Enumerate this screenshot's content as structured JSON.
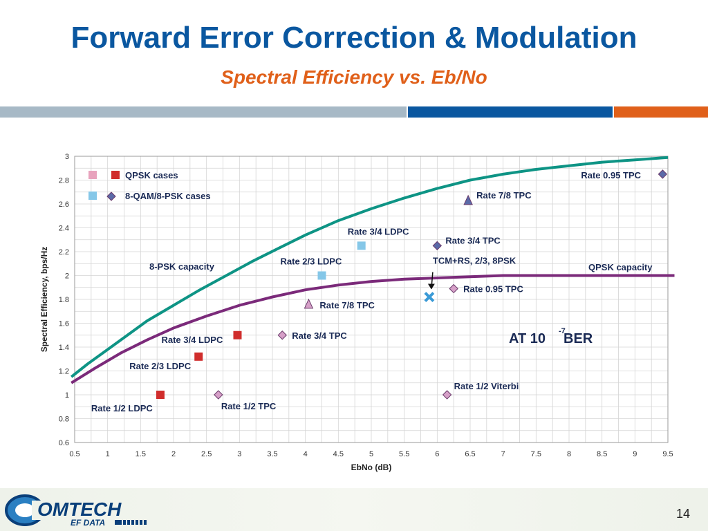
{
  "slide": {
    "title": "Forward Error Correction & Modulation",
    "subtitle": "Spectral Efficiency vs. Eb/No",
    "page_number": "14",
    "logo_text_main": "OMTECH",
    "logo_text_sub": "EF DATA"
  },
  "colors": {
    "title": "#0a57a0",
    "subtitle": "#e0601a",
    "psk_capacity_curve": "#0e9485",
    "qpsk_capacity_curve": "#7b2a7a",
    "qpsk_ldpc_marker": "#d02d2c",
    "qpsk_tpc_marker": "#d6a0c8",
    "psk8_ldpc_marker": "#85c7e8",
    "psk8_tpc_marker": "#5b6aa8",
    "tcm_marker": "#3a9ad6"
  },
  "chart_data": {
    "type": "scatter",
    "xlabel": "EbNo (dB)",
    "ylabel": "Spectral Efficiency, bps/Hz",
    "xlim": [
      0.5,
      9.5
    ],
    "ylim": [
      0.6,
      3
    ],
    "x_ticks": [
      "0.5",
      "1",
      "1.5",
      "2",
      "2.5",
      "3",
      "3.5",
      "4",
      "4.5",
      "5",
      "5.5",
      "6",
      "6.5",
      "7",
      "7.5",
      "8",
      "8.5",
      "9",
      "9.5"
    ],
    "y_ticks": [
      "0.6",
      "0.8",
      "1",
      "1.2",
      "1.4",
      "1.6",
      "1.8",
      "2",
      "2.2",
      "2.4",
      "2.6",
      "2.8",
      "3"
    ],
    "grid": true,
    "legend": [
      {
        "label": "QPSK cases",
        "markers": [
          "square-pink",
          "square-red"
        ]
      },
      {
        "label": "8-QAM/8-PSK cases",
        "markers": [
          "square-lightblue",
          "diamond-slate"
        ]
      }
    ],
    "curves": [
      {
        "name": "8-PSK capacity",
        "color": "psk_capacity_curve",
        "x": [
          0.45,
          0.7,
          1.0,
          1.3,
          1.6,
          2.0,
          2.4,
          2.8,
          3.2,
          3.6,
          4.0,
          4.5,
          5.0,
          5.5,
          6.0,
          6.5,
          7.0,
          7.5,
          8.0,
          8.5,
          9.0,
          9.5
        ],
        "y": [
          1.15,
          1.26,
          1.38,
          1.5,
          1.62,
          1.75,
          1.88,
          2.0,
          2.12,
          2.23,
          2.34,
          2.46,
          2.56,
          2.65,
          2.73,
          2.8,
          2.85,
          2.89,
          2.92,
          2.95,
          2.97,
          2.99
        ]
      },
      {
        "name": "QPSK capacity",
        "color": "qpsk_capacity_curve",
        "x": [
          0.45,
          0.8,
          1.2,
          1.6,
          2.0,
          2.5,
          3.0,
          3.5,
          4.0,
          4.5,
          5.0,
          5.5,
          6.0,
          6.5,
          7.0,
          8.0,
          9.0,
          9.6
        ],
        "y": [
          1.1,
          1.22,
          1.35,
          1.46,
          1.56,
          1.66,
          1.75,
          1.82,
          1.88,
          1.92,
          1.95,
          1.97,
          1.98,
          1.99,
          2.0,
          2.0,
          2.0,
          2.0
        ]
      }
    ],
    "points": [
      {
        "label": "Rate 1/2  LDPC",
        "x": 1.8,
        "y": 1.0,
        "marker": "square",
        "color": "qpsk_ldpc_marker"
      },
      {
        "label": "Rate 2/3  LDPC",
        "x": 2.38,
        "y": 1.32,
        "marker": "square",
        "color": "qpsk_ldpc_marker"
      },
      {
        "label": "Rate 3/4  LDPC",
        "x": 2.97,
        "y": 1.5,
        "marker": "square",
        "color": "qpsk_ldpc_marker"
      },
      {
        "label": "Rate 1/2  TPC",
        "x": 2.68,
        "y": 1.0,
        "marker": "diamond",
        "color": "qpsk_tpc_marker"
      },
      {
        "label": "Rate 3/4  TPC",
        "x": 3.65,
        "y": 1.5,
        "marker": "diamond",
        "color": "qpsk_tpc_marker"
      },
      {
        "label": "Rate 7/8  TPC",
        "x": 4.05,
        "y": 1.76,
        "marker": "triangle",
        "color": "qpsk_tpc_marker"
      },
      {
        "label": "Rate 0.95  TPC",
        "x": 6.25,
        "y": 1.89,
        "marker": "diamond",
        "color": "qpsk_tpc_marker"
      },
      {
        "label": "Rate 1/2  Viterbi",
        "x": 6.15,
        "y": 1.0,
        "marker": "diamond",
        "color": "qpsk_tpc_marker"
      },
      {
        "label": "Rate 2/3  LDPC",
        "x": 4.25,
        "y": 2.0,
        "marker": "square",
        "color": "psk8_ldpc_marker"
      },
      {
        "label": "Rate 3/4  LDPC",
        "x": 4.85,
        "y": 2.25,
        "marker": "square",
        "color": "psk8_ldpc_marker"
      },
      {
        "label": "Rate 3/4  TPC",
        "x": 6.0,
        "y": 2.25,
        "marker": "diamond",
        "color": "psk8_tpc_marker"
      },
      {
        "label": "Rate 7/8  TPC",
        "x": 6.47,
        "y": 2.63,
        "marker": "triangle",
        "color": "psk8_tpc_marker"
      },
      {
        "label": "Rate 0.95  TPC",
        "x": 9.42,
        "y": 2.85,
        "marker": "diamond",
        "color": "psk8_tpc_marker"
      },
      {
        "label": "TCM+RS, 2/3, 8PSK",
        "x": 5.88,
        "y": 1.82,
        "marker": "x",
        "color": "tcm_marker"
      }
    ],
    "annotations": {
      "psk_capacity": "8-PSK capacity",
      "qpsk_capacity": "QPSK capacity",
      "ber_text": "AT  10",
      "ber_exponent": "-7",
      "ber_suffix": " BER"
    }
  }
}
